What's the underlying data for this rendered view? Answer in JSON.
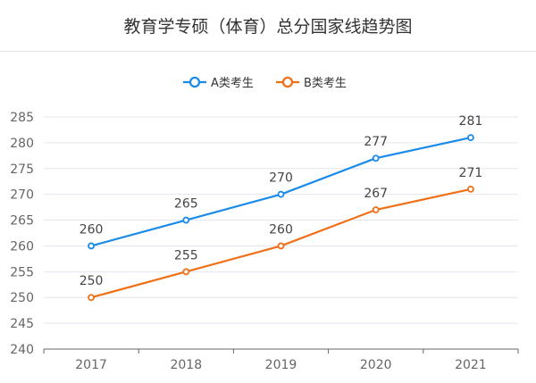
{
  "chart_data": {
    "type": "line",
    "title": "教育学专硕（体育）总分国家线趋势图",
    "categories": [
      "2017",
      "2018",
      "2019",
      "2020",
      "2021"
    ],
    "series": [
      {
        "name": "A类考生",
        "values": [
          260,
          265,
          270,
          277,
          281
        ],
        "color": "#1a8be9"
      },
      {
        "name": "B类考生",
        "values": [
          250,
          255,
          260,
          267,
          271
        ],
        "color": "#f07017"
      }
    ],
    "ylim": [
      240,
      285
    ],
    "yticks": [
      240,
      245,
      250,
      255,
      260,
      265,
      270,
      275,
      280,
      285
    ],
    "grid": true,
    "legend": "top-center",
    "data_labels": true
  }
}
